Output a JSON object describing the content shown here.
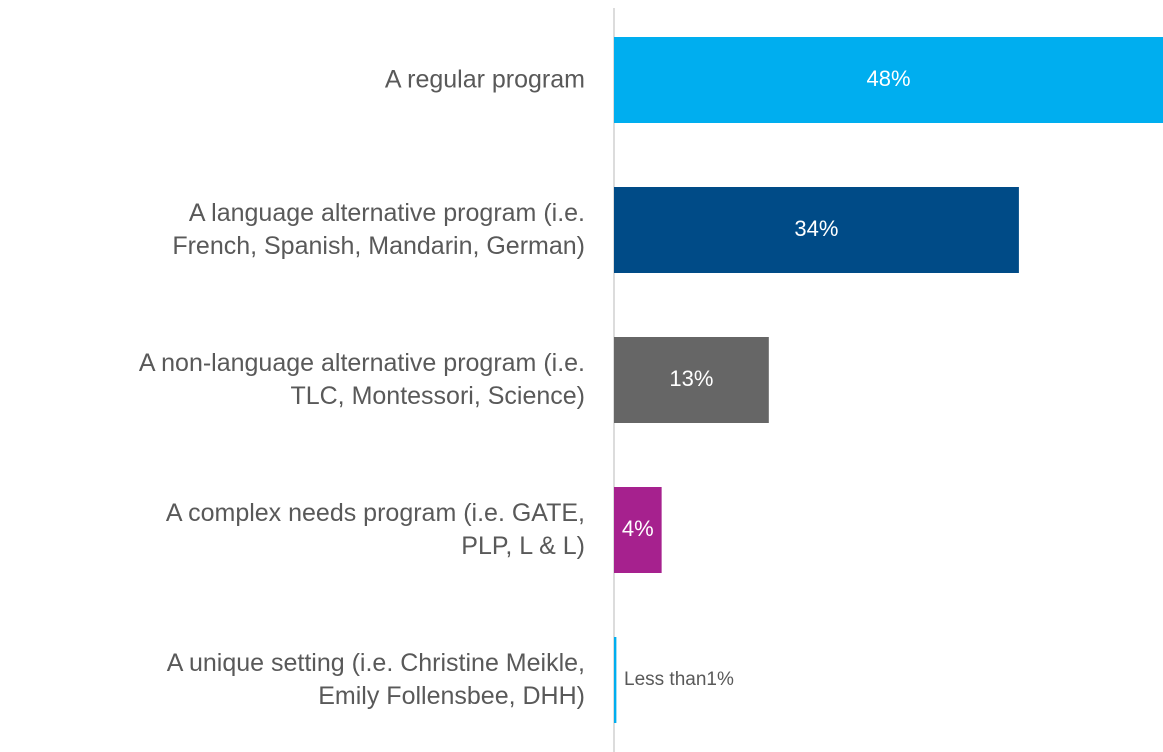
{
  "chart_data": {
    "type": "barh",
    "categories": [
      "A regular program",
      "A language alternative program (i.e.\nFrench, Spanish, Mandarin, German)",
      "A non-language alternative program (i.e.\nTLC, Montessori, Science)",
      "A complex needs program (i.e. GATE,\nPLP, L & L)",
      "A unique setting (i.e. Christine Meikle,\nEmily Follensbee, DHH)"
    ],
    "values": [
      48,
      34,
      13,
      4,
      0.2
    ],
    "value_labels": [
      "48%",
      "34%",
      "13%",
      "4%",
      "Less than1%"
    ],
    "colors": [
      "#00aeef",
      "#004b87",
      "#666666",
      "#a6218e",
      "#00aeef"
    ],
    "xlim": [
      0,
      46.1
    ]
  }
}
